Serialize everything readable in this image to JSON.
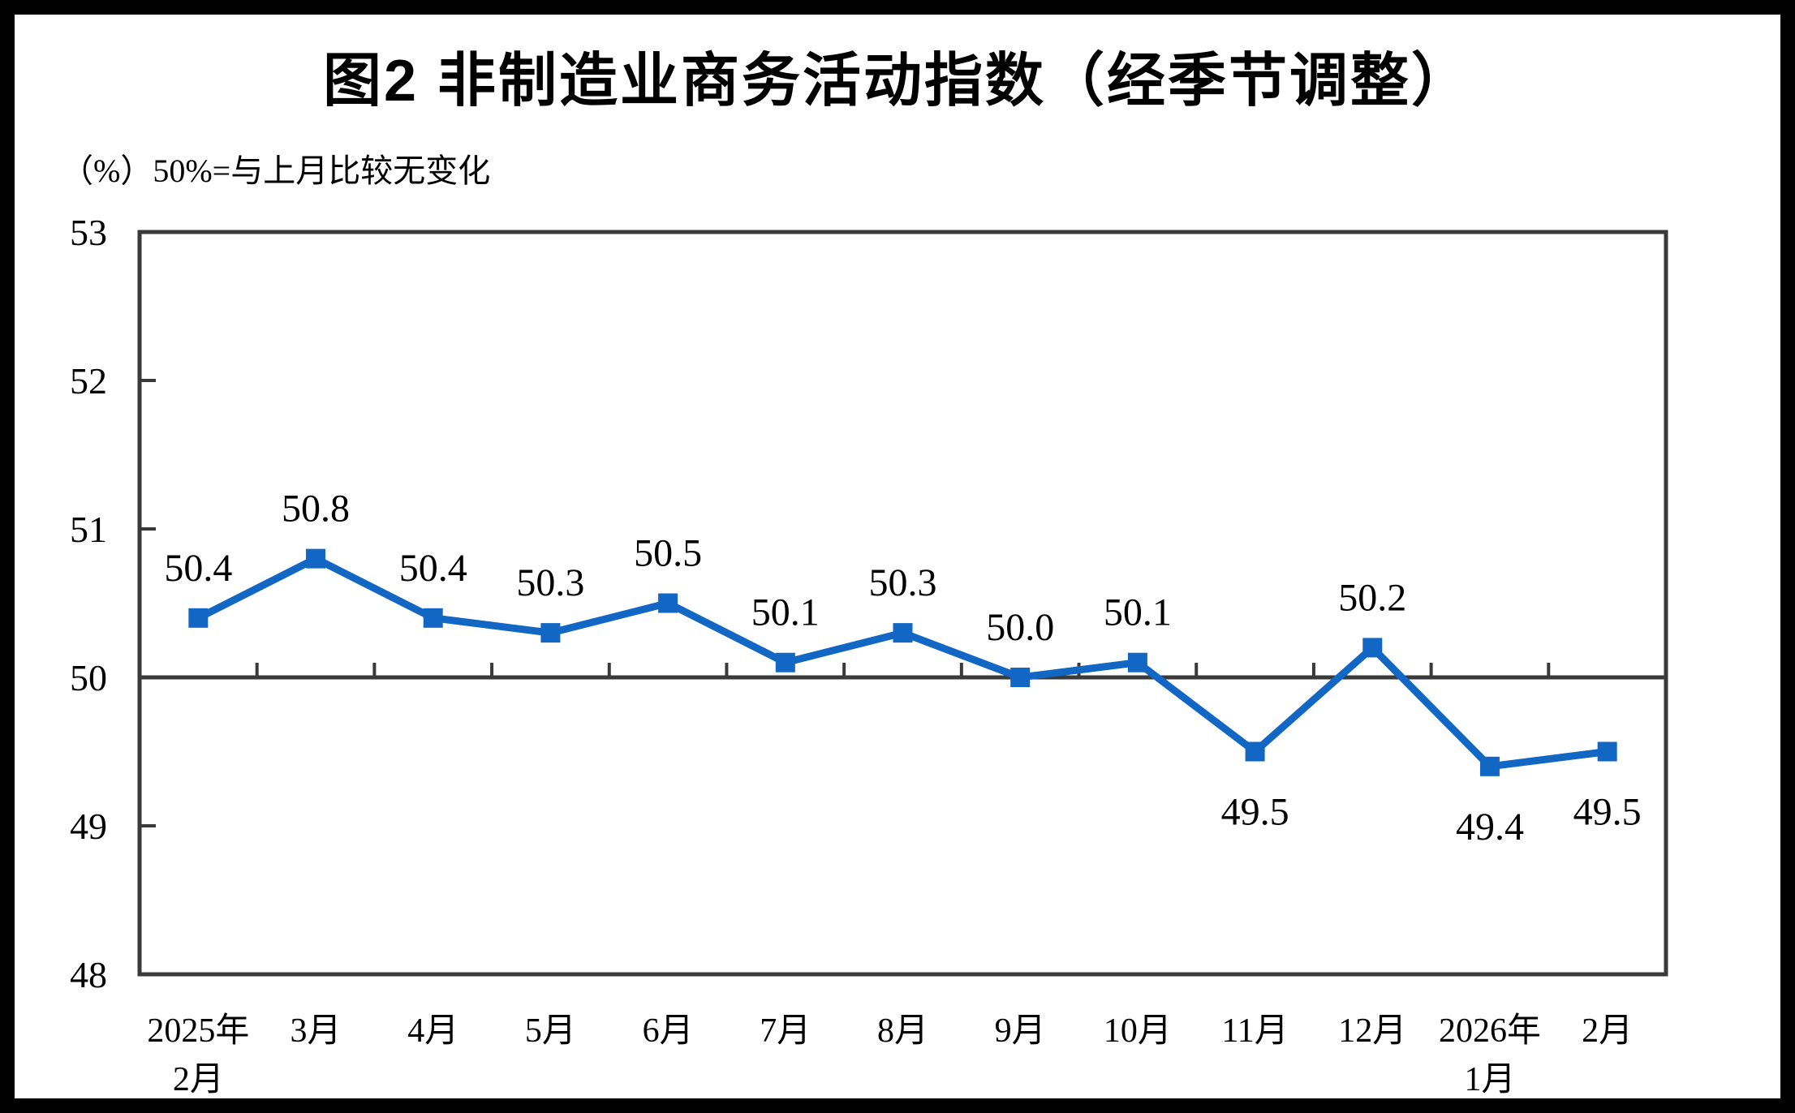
{
  "title": "图2 非制造业商务活动指数（经季节调整）",
  "subtitle": "（%）50%=与上月比较无变化",
  "colors": {
    "line": "#1266C4",
    "marker": "#1266C4",
    "axis": "#3A3A3A",
    "frame": "#000000",
    "background": "#FFFFFF",
    "text": "#000000"
  },
  "chart_data": {
    "type": "line",
    "title": "图2 非制造业商务活动指数（经季节调整）",
    "unit_note": "（%）50%=与上月比较无变化",
    "categories": [
      [
        "2025年",
        "2月"
      ],
      [
        "3月"
      ],
      [
        "4月"
      ],
      [
        "5月"
      ],
      [
        "6月"
      ],
      [
        "7月"
      ],
      [
        "8月"
      ],
      [
        "9月"
      ],
      [
        "10月"
      ],
      [
        "11月"
      ],
      [
        "12月"
      ],
      [
        "2026年",
        "1月"
      ],
      [
        "2月"
      ]
    ],
    "values": [
      50.4,
      50.8,
      50.4,
      50.3,
      50.5,
      50.1,
      50.3,
      50.0,
      50.1,
      49.5,
      50.2,
      49.4,
      49.5
    ],
    "data_labels": [
      "50.4",
      "50.8",
      "50.4",
      "50.3",
      "50.5",
      "50.1",
      "50.3",
      "50.0",
      "50.1",
      "49.5",
      "50.2",
      "49.4",
      "49.5"
    ],
    "label_side": [
      "above",
      "above",
      "above",
      "above",
      "above",
      "above",
      "above",
      "above",
      "above",
      "below",
      "above",
      "below",
      "below"
    ],
    "xlabel": "",
    "ylabel": "%",
    "ylim": [
      48,
      53
    ],
    "yticks": [
      53,
      52,
      51,
      50,
      49,
      48
    ],
    "reference_line_y": 50,
    "grid": false,
    "legend": false,
    "marker": "square"
  }
}
